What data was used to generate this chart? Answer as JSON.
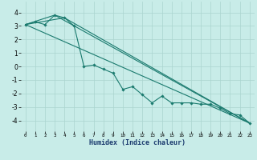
{
  "xlabel": "Humidex (Indice chaleur)",
  "x": [
    0,
    1,
    2,
    3,
    4,
    5,
    6,
    7,
    8,
    9,
    10,
    11,
    12,
    13,
    14,
    15,
    16,
    17,
    18,
    19,
    20,
    21,
    22,
    23
  ],
  "line_main": [
    3.1,
    3.3,
    3.1,
    3.8,
    3.6,
    3.0,
    0.0,
    0.1,
    -0.2,
    -0.5,
    -1.7,
    -1.5,
    -2.1,
    -2.7,
    -2.2,
    -2.7,
    -2.7,
    -2.7,
    -2.8,
    -2.8,
    -3.1,
    -3.5,
    -3.6,
    -4.2
  ],
  "ref_line1": [
    [
      0,
      23
    ],
    [
      3.1,
      -4.2
    ]
  ],
  "ref_line2": [
    [
      0,
      3,
      23
    ],
    [
      3.1,
      3.8,
      -4.2
    ]
  ],
  "ref_line3": [
    [
      0,
      4,
      23
    ],
    [
      3.1,
      3.6,
      -4.2
    ]
  ],
  "ylim": [
    -4.8,
    4.8
  ],
  "yticks": [
    -4,
    -3,
    -2,
    -1,
    0,
    1,
    2,
    3,
    4
  ],
  "xticks": [
    0,
    1,
    2,
    3,
    4,
    5,
    6,
    7,
    8,
    9,
    10,
    11,
    12,
    13,
    14,
    15,
    16,
    17,
    18,
    19,
    20,
    21,
    22,
    23
  ],
  "line_color": "#1a7a6e",
  "bg_color": "#c8ece8",
  "grid_color": "#aad4cf"
}
